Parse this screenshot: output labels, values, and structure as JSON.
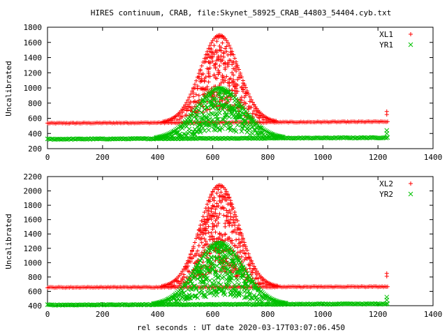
{
  "chart_data": [
    {
      "type": "scatter",
      "title": "HIRES continuum, CRAB, file:Skynet_58925_CRAB_44803_54404.cyb.txt",
      "xlabel": "",
      "ylabel": "Uncalibrated",
      "xlim": [
        0,
        1400
      ],
      "ylim": [
        200,
        1800
      ],
      "xticks": [
        0,
        200,
        400,
        600,
        800,
        1000,
        1200,
        1400
      ],
      "yticks": [
        200,
        400,
        600,
        800,
        1000,
        1200,
        1400,
        1600,
        1800
      ],
      "grid": false,
      "legend_position": "top-right",
      "series": [
        {
          "name": "XL1",
          "marker": "plus",
          "color": "#ff0000",
          "x_start": 0,
          "x_end": 1235,
          "x_step": 5,
          "baseline_x": [
            0,
            1235
          ],
          "baseline_y": [
            535,
            555
          ],
          "peak_center": 625,
          "peak_sigma": 70,
          "peak_height": 1150,
          "final_point": [
            1232,
            690
          ]
        },
        {
          "name": "YR1",
          "marker": "cross",
          "color": "#00c000",
          "x_start": 0,
          "x_end": 1235,
          "x_step": 5,
          "baseline_x": [
            0,
            1235
          ],
          "baseline_y": [
            325,
            345
          ],
          "peak_center": 625,
          "peak_sigma": 85,
          "peak_height": 660,
          "final_point": [
            1232,
            440
          ]
        }
      ]
    },
    {
      "type": "scatter",
      "title": "",
      "xlabel": "rel seconds : UT date 2020-03-17T03:07:06.450",
      "ylabel": "Uncalibrated",
      "xlim": [
        0,
        1400
      ],
      "ylim": [
        400,
        2200
      ],
      "xticks": [
        0,
        200,
        400,
        600,
        800,
        1000,
        1200,
        1400
      ],
      "yticks": [
        400,
        600,
        800,
        1000,
        1200,
        1400,
        1600,
        1800,
        2000,
        2200
      ],
      "grid": false,
      "legend_position": "top-right",
      "series": [
        {
          "name": "XL2",
          "marker": "plus",
          "color": "#ff0000",
          "x_start": 0,
          "x_end": 1235,
          "x_step": 5,
          "baseline_x": [
            0,
            1235
          ],
          "baseline_y": [
            655,
            665
          ],
          "peak_center": 625,
          "peak_sigma": 70,
          "peak_height": 1420,
          "final_point": [
            1232,
            850
          ]
        },
        {
          "name": "YR2",
          "marker": "cross",
          "color": "#00c000",
          "x_start": 0,
          "x_end": 1235,
          "x_step": 5,
          "baseline_x": [
            0,
            1235
          ],
          "baseline_y": [
            410,
            425
          ],
          "peak_center": 625,
          "peak_sigma": 85,
          "peak_height": 860,
          "final_point": [
            1232,
            520
          ]
        }
      ]
    }
  ]
}
